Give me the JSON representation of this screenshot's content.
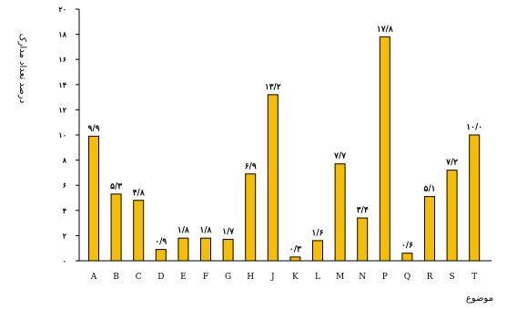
{
  "chart_data": {
    "type": "bar",
    "categories": [
      "A",
      "B",
      "C",
      "D",
      "E",
      "F",
      "G",
      "H",
      "J",
      "K",
      "L",
      "M",
      "N",
      "P",
      "Q",
      "R",
      "S",
      "T"
    ],
    "values": [
      9.9,
      5.3,
      4.8,
      0.9,
      1.8,
      1.8,
      1.7,
      6.9,
      13.2,
      0.3,
      1.6,
      7.7,
      3.4,
      17.8,
      0.6,
      5.1,
      7.2,
      10.0
    ],
    "data_labels": [
      "۹/۹",
      "۵/۳",
      "۴/۸",
      "۰/۹",
      "۱/۸",
      "۱/۸",
      "۱/۷",
      "۶/۹",
      "۱۳/۲",
      "۰/۳",
      "۱/۶",
      "۷/۷",
      "۳/۴",
      "۱۷/۸",
      "۰/۶",
      "۵/۱",
      "۷/۲",
      "۱۰/۰"
    ],
    "yticks": [
      0,
      2,
      4,
      6,
      8,
      10,
      12,
      14,
      16,
      18,
      20
    ],
    "ytick_labels": [
      "۰",
      "۲",
      "۴",
      "۶",
      "۸",
      "۱۰",
      "۱۲",
      "۱۴",
      "۱۶",
      "۱۸",
      "۲۰"
    ],
    "ylim": [
      0,
      20
    ],
    "xlabel": "موضوع",
    "ylabel": "درصد تعداد مدارک",
    "title": "",
    "grid": false,
    "bar_color": "#F5BE00",
    "bar_stroke": "#000000"
  }
}
